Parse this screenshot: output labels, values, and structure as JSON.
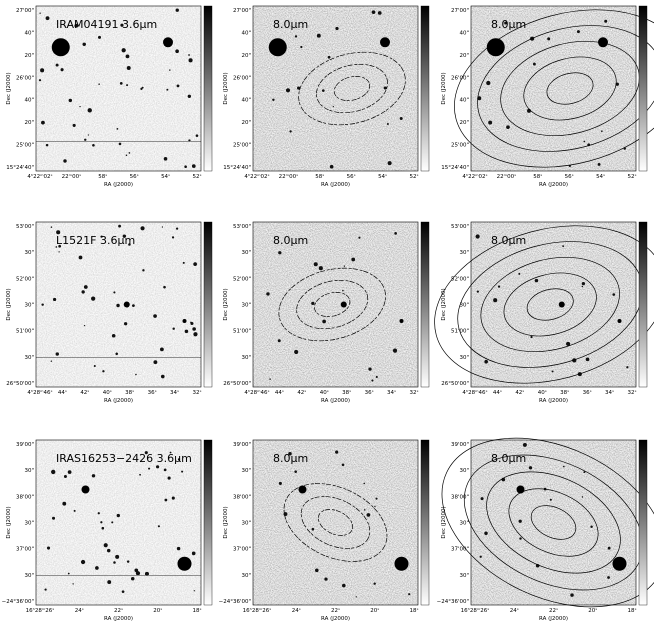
{
  "axis_labels": {
    "x": "RA (J2000)",
    "y": "Dec (J2000)"
  },
  "rows": [
    {
      "ra_ticks": [
        "4ʰ22ᵐ02ˢ",
        "22ᵐ00ˢ",
        "58ˢ",
        "56ˢ",
        "54ˢ",
        "52ˢ"
      ],
      "dec_ticks": [
        "27'00\"",
        "40\"",
        "20\"",
        "26'00\"",
        "40\"",
        "20\"",
        "25'00\"",
        "15°24'40\""
      ],
      "panels": [
        {
          "label": "IRAM04191 3.6μm"
        },
        {
          "label": "8.0μm"
        },
        {
          "label": "8.0μm"
        }
      ]
    },
    {
      "ra_ticks": [
        "4ʰ28ᵐ46ˢ",
        "44ˢ",
        "42ˢ",
        "40ˢ",
        "38ˢ",
        "36ˢ",
        "34ˢ",
        "32ˢ"
      ],
      "dec_ticks": [
        "53'00\"",
        "30\"",
        "52'00\"",
        "30\"",
        "51'00\"",
        "30\"",
        "26°50'00\""
      ],
      "panels": [
        {
          "label": "L1521F 3.6μm"
        },
        {
          "label": "8.0μm"
        },
        {
          "label": "8.0μm"
        }
      ]
    },
    {
      "ra_ticks": [
        "16ʰ28ᵐ26ˢ",
        "24ˢ",
        "22ˢ",
        "20ˢ",
        "18ˢ"
      ],
      "dec_ticks": [
        "39'00\"",
        "30\"",
        "38'00\"",
        "30\"",
        "37'00\"",
        "30\"",
        "−24°36'00\""
      ],
      "panels": [
        {
          "label": "IRAS16253−2426 3.6μm"
        },
        {
          "label": "8.0μm"
        },
        {
          "label": "8.0μm"
        }
      ]
    }
  ]
}
